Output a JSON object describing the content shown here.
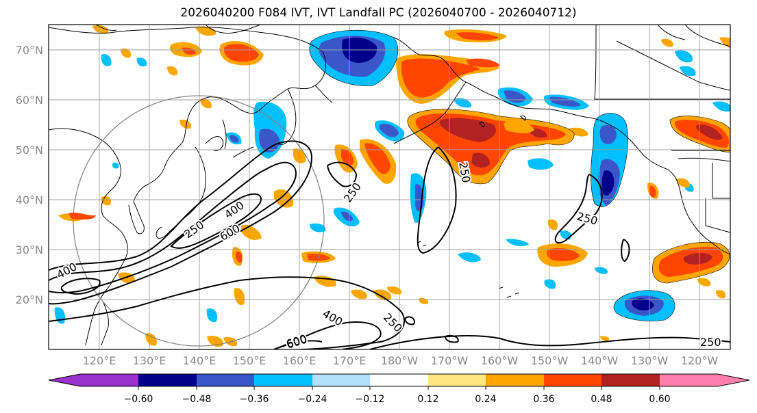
{
  "title": "2026040200 F084 IVT, IVT Landfall PC (2026040700 - 2026040712)",
  "map": {
    "lat_labels": [
      "70°N",
      "60°N",
      "50°N",
      "40°N",
      "30°N",
      "20°N"
    ],
    "lon_labels": [
      "120°E",
      "130°E",
      "140°E",
      "150°E",
      "160°E",
      "170°E",
      "180°W",
      "170°W",
      "160°W",
      "150°W",
      "140°W",
      "130°W",
      "120°W"
    ],
    "ivt_contour_labels": [
      "400",
      "600",
      "250",
      "250",
      "400",
      "600",
      "250",
      "400",
      "250",
      "600",
      "250",
      "250"
    ],
    "colors": {
      "very_neg": "#9932cc",
      "neg_060": "#00008b",
      "neg_048": "#3a56c8",
      "neg_036": "#00bfff",
      "neg_024": "#b0e0fa",
      "neutral": "#ffffff",
      "pos_012": "#ffe680",
      "pos_024": "#ffa500",
      "pos_036": "#ff4500",
      "pos_048": "#b22222",
      "very_pos": "#ff80ac"
    }
  },
  "colorbar": {
    "tick_labels": [
      "−0.60",
      "−0.48",
      "−0.36",
      "−0.24",
      "−0.12",
      "0.12",
      "0.24",
      "0.36",
      "0.48",
      "0.60"
    ]
  }
}
